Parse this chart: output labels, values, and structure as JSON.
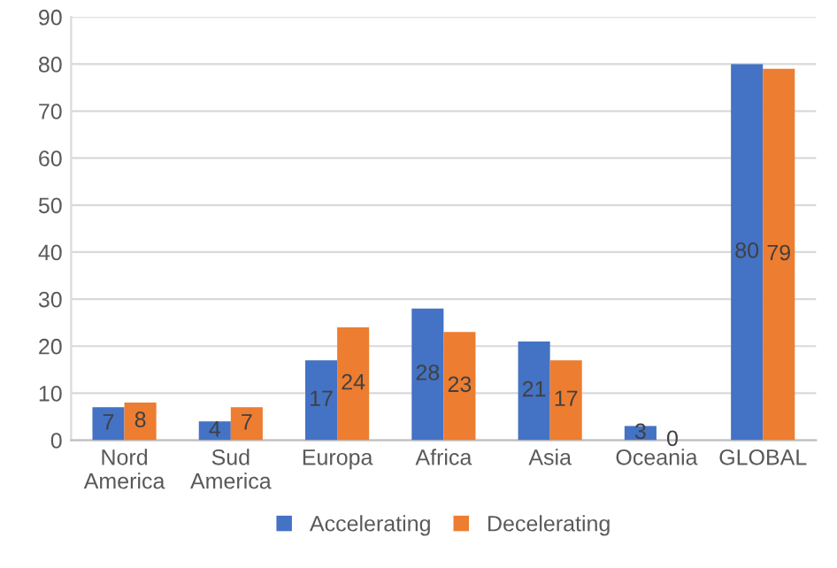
{
  "chart_data": {
    "type": "bar",
    "categories": [
      "Nord America",
      "Sud America",
      "Europa",
      "Africa",
      "Asia",
      "Oceania",
      "GLOBAL"
    ],
    "series": [
      {
        "name": "Accelerating",
        "color": "#4472c4",
        "values": [
          7,
          4,
          17,
          28,
          21,
          3,
          80
        ]
      },
      {
        "name": "Decelerating",
        "color": "#ed7d31",
        "values": [
          8,
          7,
          24,
          23,
          17,
          0,
          79
        ]
      }
    ],
    "ylim": [
      0,
      90
    ],
    "yticks": [
      0,
      10,
      20,
      30,
      40,
      50,
      60,
      70,
      80,
      90
    ],
    "grid": "y",
    "legend": "bottom",
    "data_labels": true
  }
}
